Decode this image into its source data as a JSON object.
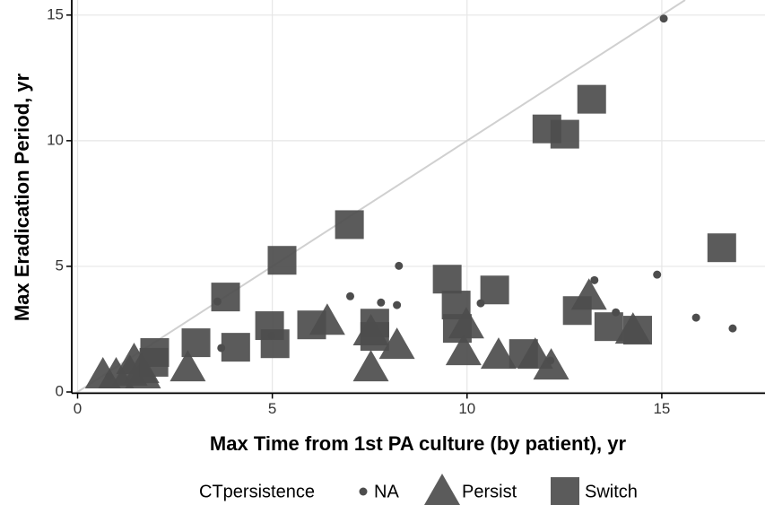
{
  "chart_data": {
    "type": "scatter",
    "xlabel": "Max Time from 1st PA culture (by patient), yr",
    "ylabel": "Max Eradication Period, yr",
    "legend_title": "CTpersistence",
    "xlim": [
      -0.15,
      17.65
    ],
    "ylim": [
      -0.05,
      15.6
    ],
    "xticks": [
      0,
      5,
      10,
      15
    ],
    "yticks": [
      0,
      5,
      10,
      15
    ],
    "grid": true,
    "diagonal": true,
    "series": [
      {
        "name": "NA",
        "marker": "circle",
        "color": "#4d4d4d",
        "x": [
          15.05,
          8.25,
          7.0,
          7.79,
          8.2,
          3.59,
          3.69,
          10.35,
          13.27,
          14.88,
          13.82,
          15.88,
          16.82,
          12.14,
          0.81,
          4.98
        ],
        "y": [
          14.86,
          5.02,
          3.81,
          3.56,
          3.46,
          3.6,
          1.75,
          3.53,
          4.45,
          4.67,
          3.17,
          2.96,
          2.53,
          1.25,
          0.61,
          2.24
        ]
      },
      {
        "name": "Persist",
        "marker": "triangle",
        "color": "#4d4d4d",
        "x": [
          6.41,
          7.53,
          8.2,
          7.53,
          9.98,
          9.91,
          10.81,
          11.75,
          12.16,
          13.13,
          14.26,
          2.83,
          0.65,
          0.99,
          1.34,
          1.64,
          1.45,
          1.68
        ],
        "y": [
          2.81,
          2.39,
          1.85,
          0.96,
          2.67,
          1.6,
          1.46,
          1.46,
          1.03,
          3.81,
          2.46,
          0.96,
          0.68,
          0.68,
          0.78,
          0.89,
          1.25,
          0.68
        ]
      },
      {
        "name": "Switch",
        "marker": "square",
        "color": "#4d4d4d",
        "x": [
          13.2,
          12.05,
          12.51,
          6.98,
          5.25,
          16.54,
          3.8,
          9.49,
          10.71,
          9.72,
          9.75,
          12.83,
          13.64,
          14.38,
          4.93,
          5.07,
          6.01,
          7.63,
          7.63,
          3.04,
          4.06,
          1.98,
          1.96,
          11.45
        ],
        "y": [
          11.65,
          10.47,
          10.26,
          6.66,
          5.24,
          5.74,
          3.78,
          4.49,
          4.06,
          3.46,
          2.53,
          3.24,
          2.6,
          2.46,
          2.64,
          1.92,
          2.67,
          2.74,
          2.21,
          1.96,
          1.78,
          1.57,
          1.18,
          1.53
        ]
      }
    ]
  }
}
